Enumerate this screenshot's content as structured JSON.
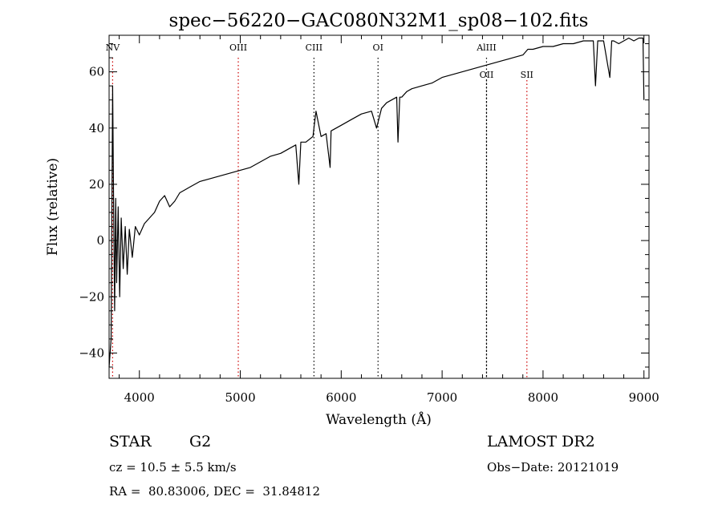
{
  "chart_data": {
    "type": "line",
    "title": "spec−56220−GAC080N32M1_sp08−102.fits",
    "xlabel": "Wavelength (Å)",
    "ylabel": "Flux (relative)",
    "xlim": [
      3700,
      9050
    ],
    "ylim": [
      -49,
      73
    ],
    "xticks": [
      4000,
      5000,
      6000,
      7000,
      8000,
      9000
    ],
    "yticks": [
      -40,
      -20,
      0,
      20,
      40,
      60
    ],
    "ytick_labels": [
      "−40",
      "−20",
      "0",
      "20",
      "40",
      "60"
    ],
    "grid": false,
    "series": [
      {
        "color": "#000000",
        "x": [
          3700,
          3720,
          3735,
          3745,
          3755,
          3765,
          3775,
          3790,
          3805,
          3820,
          3840,
          3860,
          3880,
          3900,
          3930,
          3960,
          4000,
          4050,
          4100,
          4150,
          4200,
          4250,
          4300,
          4350,
          4400,
          4450,
          4500,
          4600,
          4700,
          4800,
          4900,
          5000,
          5100,
          5200,
          5300,
          5400,
          5500,
          5550,
          5580,
          5600,
          5650,
          5720,
          5750,
          5800,
          5850,
          5890,
          5900,
          5950,
          6000,
          6100,
          6200,
          6300,
          6350,
          6400,
          6450,
          6500,
          6550,
          6563,
          6580,
          6600,
          6650,
          6700,
          6800,
          6900,
          7000,
          7100,
          7200,
          7300,
          7400,
          7500,
          7600,
          7700,
          7800,
          7850,
          7900,
          8000,
          8100,
          8200,
          8300,
          8400,
          8498,
          8520,
          8542,
          8560,
          8600,
          8662,
          8680,
          8700,
          8750,
          8800,
          8850,
          8900,
          8950,
          8990,
          9000
        ],
        "y": [
          -45,
          -35,
          55,
          10,
          -25,
          15,
          -15,
          12,
          -20,
          8,
          -10,
          5,
          -12,
          4,
          -6,
          5,
          2,
          6,
          8,
          10,
          14,
          16,
          12,
          14,
          17,
          18,
          19,
          21,
          22,
          23,
          24,
          25,
          26,
          28,
          30,
          31,
          33,
          34,
          20,
          35,
          35,
          37,
          46,
          37,
          38,
          26,
          39,
          40,
          41,
          43,
          45,
          46,
          40,
          47,
          49,
          50,
          51,
          35,
          51,
          51,
          53,
          54,
          55,
          56,
          58,
          59,
          60,
          61,
          62,
          63,
          64,
          65,
          66,
          68,
          68,
          69,
          69,
          70,
          70,
          71,
          71,
          55,
          71,
          71,
          71,
          58,
          71,
          71,
          70,
          71,
          72,
          71,
          72,
          72,
          50
        ]
      }
    ],
    "line_markers": [
      {
        "label": "NV",
        "x": 3735,
        "color": "#cc0000",
        "label_pos": "top"
      },
      {
        "label": "OIII",
        "x": 4980,
        "color": "#cc0000",
        "label_pos": "top"
      },
      {
        "label": "CIII",
        "x": 5730,
        "color": "#000000",
        "label_pos": "top"
      },
      {
        "label": "OI",
        "x": 6365,
        "color": "#000000",
        "label_pos": "top"
      },
      {
        "label": "AlIII",
        "x": 7440,
        "color": "#000000",
        "label_pos": "top"
      },
      {
        "label": "OII",
        "x": 7440,
        "color": "#000000",
        "label_pos": "low"
      },
      {
        "label": "SII",
        "x": 7840,
        "color": "#cc0000",
        "label_pos": "low"
      }
    ]
  },
  "footer": {
    "object_class": "STAR",
    "subclass": "G2",
    "survey": "LAMOST DR2",
    "redshift_text": "cz = 10.5 ± 5.5 km/s",
    "obs_date_text": "Obs−Date: 20121019",
    "coords_text": "RA =  80.83006, DEC =  31.84812"
  }
}
